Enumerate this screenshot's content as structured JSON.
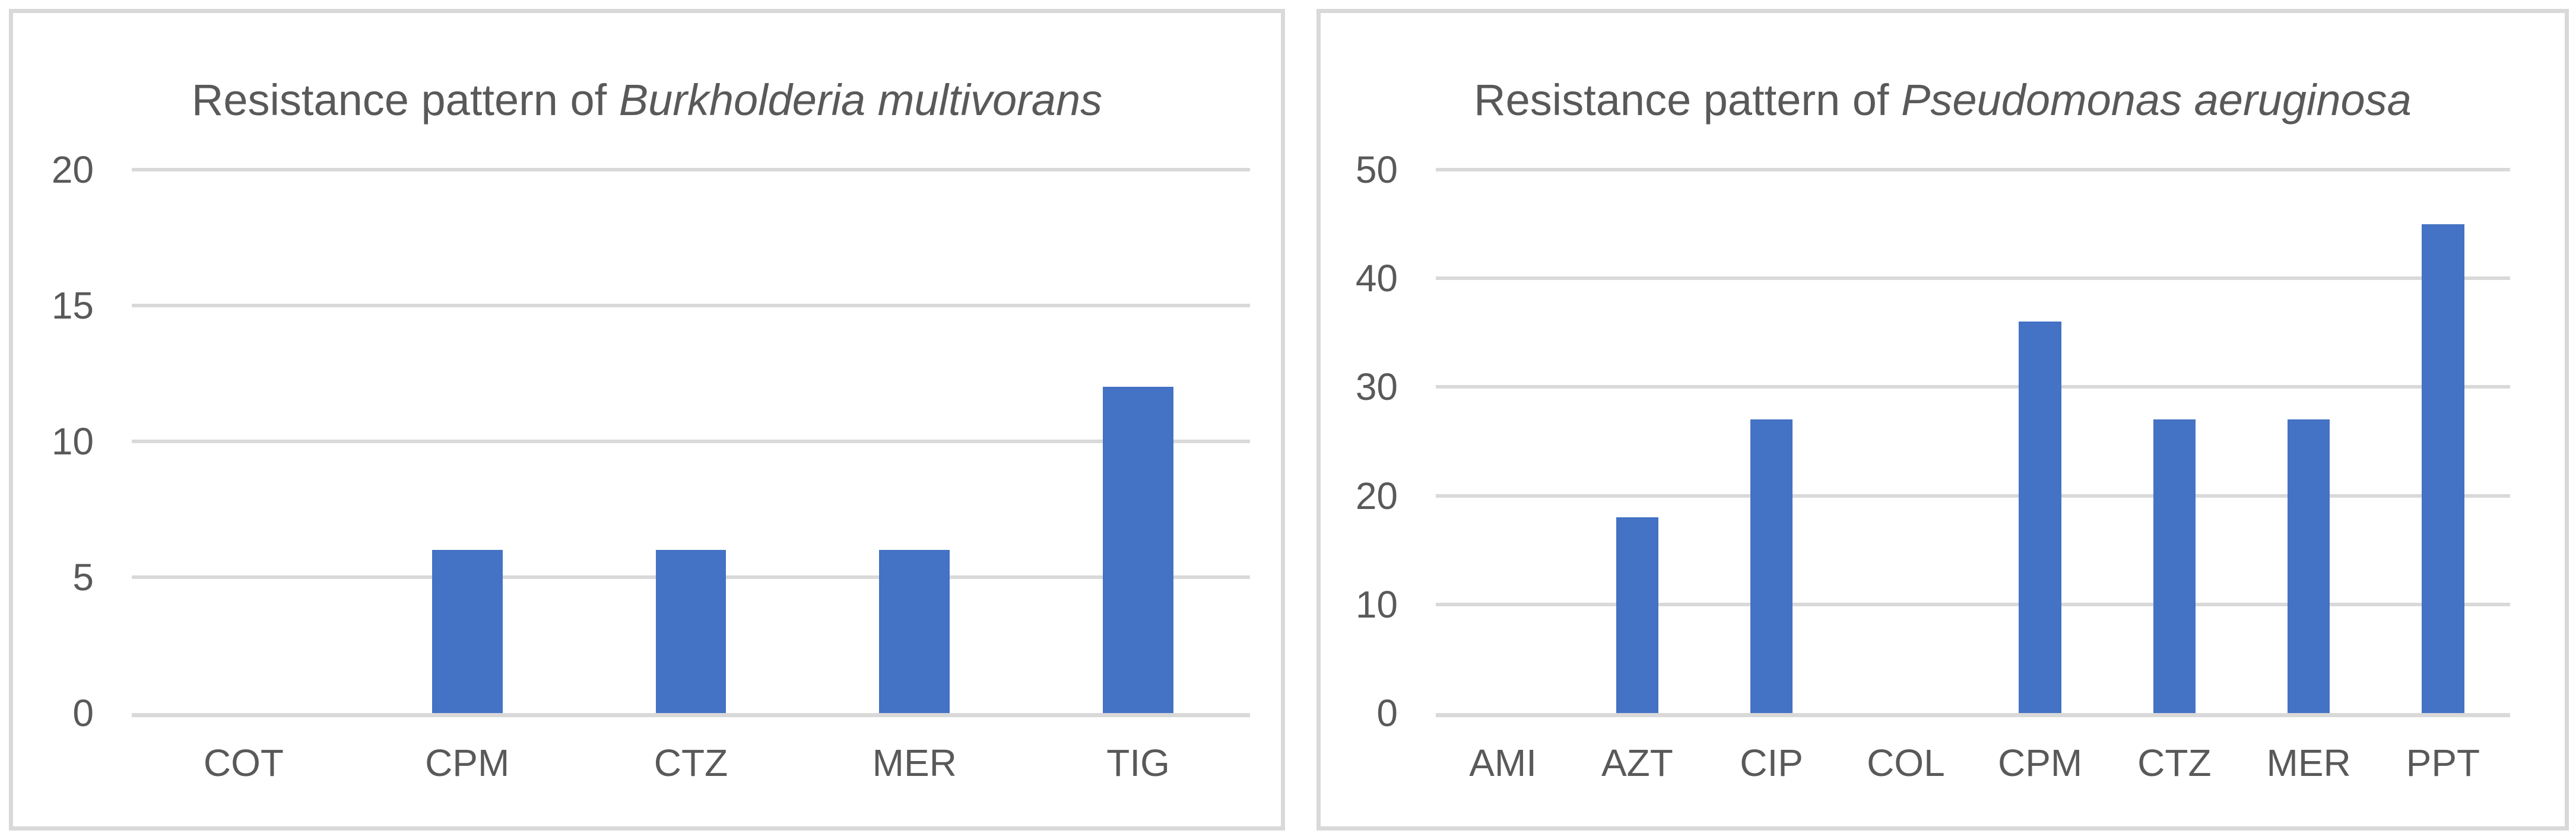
{
  "page": {
    "background": "#FFFFFF"
  },
  "chart_data": [
    {
      "type": "bar",
      "title_prefix": "Resistance pattern of ",
      "title_italic": "Burkholderia multivorans",
      "categories": [
        "COT",
        "CPM",
        "CTZ",
        "MER",
        "TIG"
      ],
      "values": [
        0,
        6,
        6,
        6,
        12
      ],
      "ylim": [
        0,
        20
      ],
      "yticks": [
        0,
        5,
        10,
        15,
        20
      ],
      "grid": true,
      "legend": "none",
      "bar_color": "#4472C4",
      "gridline_color": "#D9D9D9",
      "axis_text_color": "#595959",
      "title_color": "#595959",
      "panel_border_color": "#D9D9D9"
    },
    {
      "type": "bar",
      "title_prefix": "Resistance pattern of ",
      "title_italic": "Pseudomonas aeruginosa",
      "categories": [
        "AMI",
        "AZT",
        "CIP",
        "COL",
        "CPM",
        "CTZ",
        "MER",
        "PPT"
      ],
      "values": [
        0,
        18,
        27,
        0,
        36,
        27,
        27,
        45
      ],
      "ylim": [
        0,
        50
      ],
      "yticks": [
        0,
        10,
        20,
        30,
        40,
        50
      ],
      "grid": true,
      "legend": "none",
      "bar_color": "#4472C4",
      "gridline_color": "#D9D9D9",
      "axis_text_color": "#595959",
      "title_color": "#595959",
      "panel_border_color": "#D9D9D9"
    }
  ]
}
